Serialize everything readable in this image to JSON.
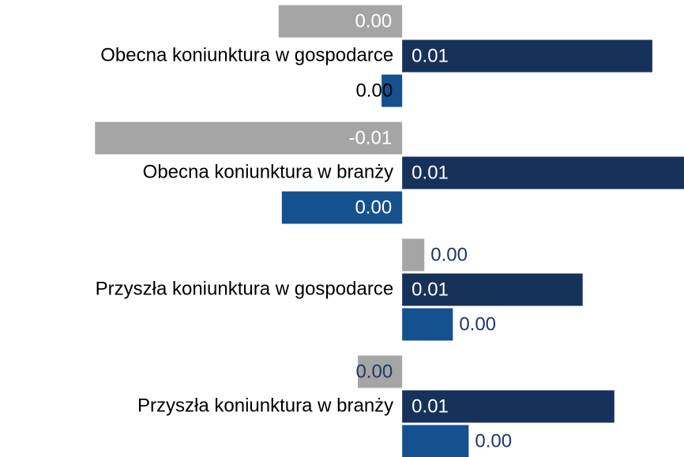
{
  "chart_data": {
    "type": "bar",
    "orientation": "horizontal",
    "categories": [
      "Obecna koniunktura w gospodarce",
      "Obecna koniunktura w branży",
      "Przyszła koniunktura w gospodarce",
      "Przyszła koniunktura w branży"
    ],
    "series": [
      {
        "color": "#a5a5a5",
        "values": [
          -0.0039,
          -0.0097,
          0.0007,
          -0.0014
        ],
        "value_labels": [
          "0.00",
          "-0.01",
          "0.00",
          "0.00"
        ]
      },
      {
        "color": "#17325a",
        "values": [
          0.0079,
          0.0089,
          0.0057,
          0.0067
        ],
        "value_labels": [
          "0.01",
          "0.01",
          "0.01",
          "0.01"
        ]
      },
      {
        "color": "#15508f",
        "values": [
          -0.00065,
          -0.0038,
          0.0016,
          0.0021
        ],
        "value_labels": [
          "0.00",
          "0.00",
          "0.00",
          "0.00"
        ]
      }
    ],
    "xlim": [
      -0.0127,
      0.0089
    ]
  }
}
